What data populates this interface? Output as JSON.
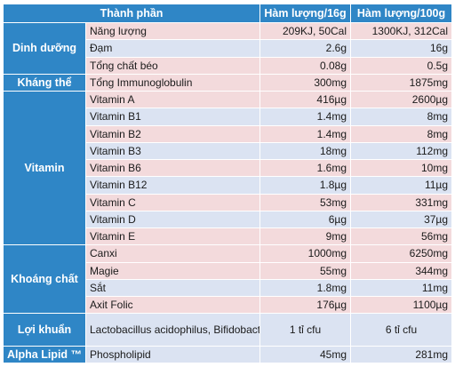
{
  "header": [
    "Thành phần",
    "Hàm lượng/16g",
    "Hàm lượng/100g"
  ],
  "groups": [
    {
      "category": "Dinh dưỡng",
      "rows": [
        {
          "name": "Năng lượng",
          "v16": "209KJ, 50Cal",
          "v100": "1300KJ, 312Cal"
        },
        {
          "name": "Đạm",
          "v16": "2.6g",
          "v100": "16g"
        },
        {
          "name": "Tổng chất béo",
          "v16": "0.08g",
          "v100": "0.5g"
        }
      ]
    },
    {
      "category": "Kháng thể",
      "rows": [
        {
          "name": "Tổng Immunoglobulin",
          "v16": "300mg",
          "v100": "1875mg"
        }
      ]
    },
    {
      "category": "Vitamin",
      "rows": [
        {
          "name": "Vitamin A",
          "v16": "416µg",
          "v100": "2600µg"
        },
        {
          "name": "Vitamin B1",
          "v16": "1.4mg",
          "v100": "8mg"
        },
        {
          "name": "Vitamin B2",
          "v16": "1.4mg",
          "v100": "8mg"
        },
        {
          "name": "Vitamin B3",
          "v16": "18mg",
          "v100": "112mg"
        },
        {
          "name": "Vitamin B6",
          "v16": "1.6mg",
          "v100": "10mg"
        },
        {
          "name": "Vitamin B12",
          "v16": "1.8µg",
          "v100": "11µg"
        },
        {
          "name": "Vitamin C",
          "v16": "53mg",
          "v100": "331mg"
        },
        {
          "name": "Vitamin D",
          "v16": "6µg",
          "v100": "37µg"
        },
        {
          "name": "Vitamin E",
          "v16": "9mg",
          "v100": "56mg"
        }
      ]
    },
    {
      "category": "Khoáng chất",
      "rows": [
        {
          "name": "Canxi",
          "v16": "1000mg",
          "v100": "6250mg"
        },
        {
          "name": "Magie",
          "v16": "55mg",
          "v100": "344mg"
        },
        {
          "name": "Sắt",
          "v16": "1.8mg",
          "v100": "11mg"
        },
        {
          "name": "Axit Folic",
          "v16": "176µg",
          "v100": "1100µg"
        }
      ]
    },
    {
      "category": "Lợi khuẩn",
      "rows": [
        {
          "name": "Lactobacillus acidophilus, Bifidobacterium lactis",
          "v16": "1 tỉ cfu",
          "v100": "6 tỉ cfu"
        }
      ]
    },
    {
      "category": "Alpha Lipid ™",
      "rows": [
        {
          "name": "Phospholipid",
          "v16": "45mg",
          "v100": "281mg"
        }
      ]
    }
  ]
}
